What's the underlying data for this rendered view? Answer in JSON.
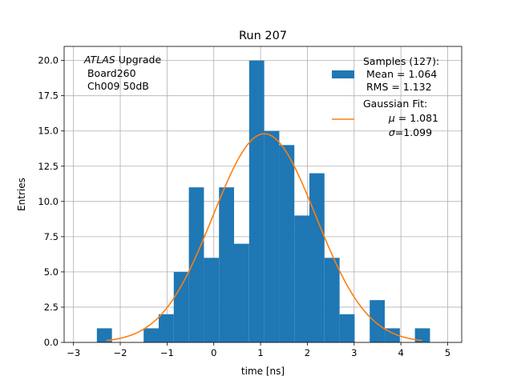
{
  "chart_data": {
    "type": "bar",
    "title": "Run 207",
    "xlabel": "time [ns]",
    "ylabel": "Entries",
    "xlim": [
      -3.2,
      5.3
    ],
    "ylim": [
      0,
      21
    ],
    "xticks": [
      -3,
      -2,
      -1,
      0,
      1,
      2,
      3,
      4,
      5
    ],
    "xtick_labels": [
      "−3",
      "−2",
      "−1",
      "0",
      "1",
      "2",
      "3",
      "4",
      "5"
    ],
    "yticks": [
      0,
      2.5,
      5,
      7.5,
      10,
      12.5,
      15,
      17.5,
      20
    ],
    "ytick_labels": [
      "0.0",
      "2.5",
      "5.0",
      "7.5",
      "10.0",
      "12.5",
      "15.0",
      "17.5",
      "20.0"
    ],
    "grid": true,
    "bin_width": 0.3222,
    "bins": [
      {
        "x0": -2.5,
        "value": 1
      },
      {
        "x0": -1.5,
        "value": 1
      },
      {
        "x0": -1.178,
        "value": 2
      },
      {
        "x0": -0.856,
        "value": 5
      },
      {
        "x0": -0.533,
        "value": 11
      },
      {
        "x0": -0.211,
        "value": 6
      },
      {
        "x0": 0.111,
        "value": 11
      },
      {
        "x0": 0.433,
        "value": 7
      },
      {
        "x0": 0.756,
        "value": 20
      },
      {
        "x0": 1.078,
        "value": 15
      },
      {
        "x0": 1.4,
        "value": 14
      },
      {
        "x0": 1.722,
        "value": 9
      },
      {
        "x0": 2.044,
        "value": 12
      },
      {
        "x0": 2.367,
        "value": 6
      },
      {
        "x0": 2.689,
        "value": 2
      },
      {
        "x0": 3.333,
        "value": 3
      },
      {
        "x0": 3.656,
        "value": 1
      },
      {
        "x0": 4.3,
        "value": 1
      }
    ],
    "fit": {
      "amplitude": 14.8,
      "mu": 1.081,
      "sigma": 1.099,
      "x_range": [
        -2.3,
        4.45
      ]
    },
    "colors": {
      "bars": "#1f77b4",
      "fit": "#ff7f0e",
      "grid": "#b0b0b0"
    },
    "annotation": {
      "italic": "ATLAS",
      "line1_rest": " Upgrade",
      "line2": " Board260",
      "line3": " Ch009 50dB"
    },
    "legend": {
      "placement": "top-right",
      "hist_line1": "Samples (127):",
      "hist_line2": " Mean = 1.064",
      "hist_line3": " RMS = 1.132",
      "fit_line1": "Gaussian Fit:",
      "fit_mu_symbol": "μ",
      "fit_mu_rest": " = 1.081",
      "fit_sigma_symbol": "σ",
      "fit_sigma_rest": "=1.099"
    }
  }
}
